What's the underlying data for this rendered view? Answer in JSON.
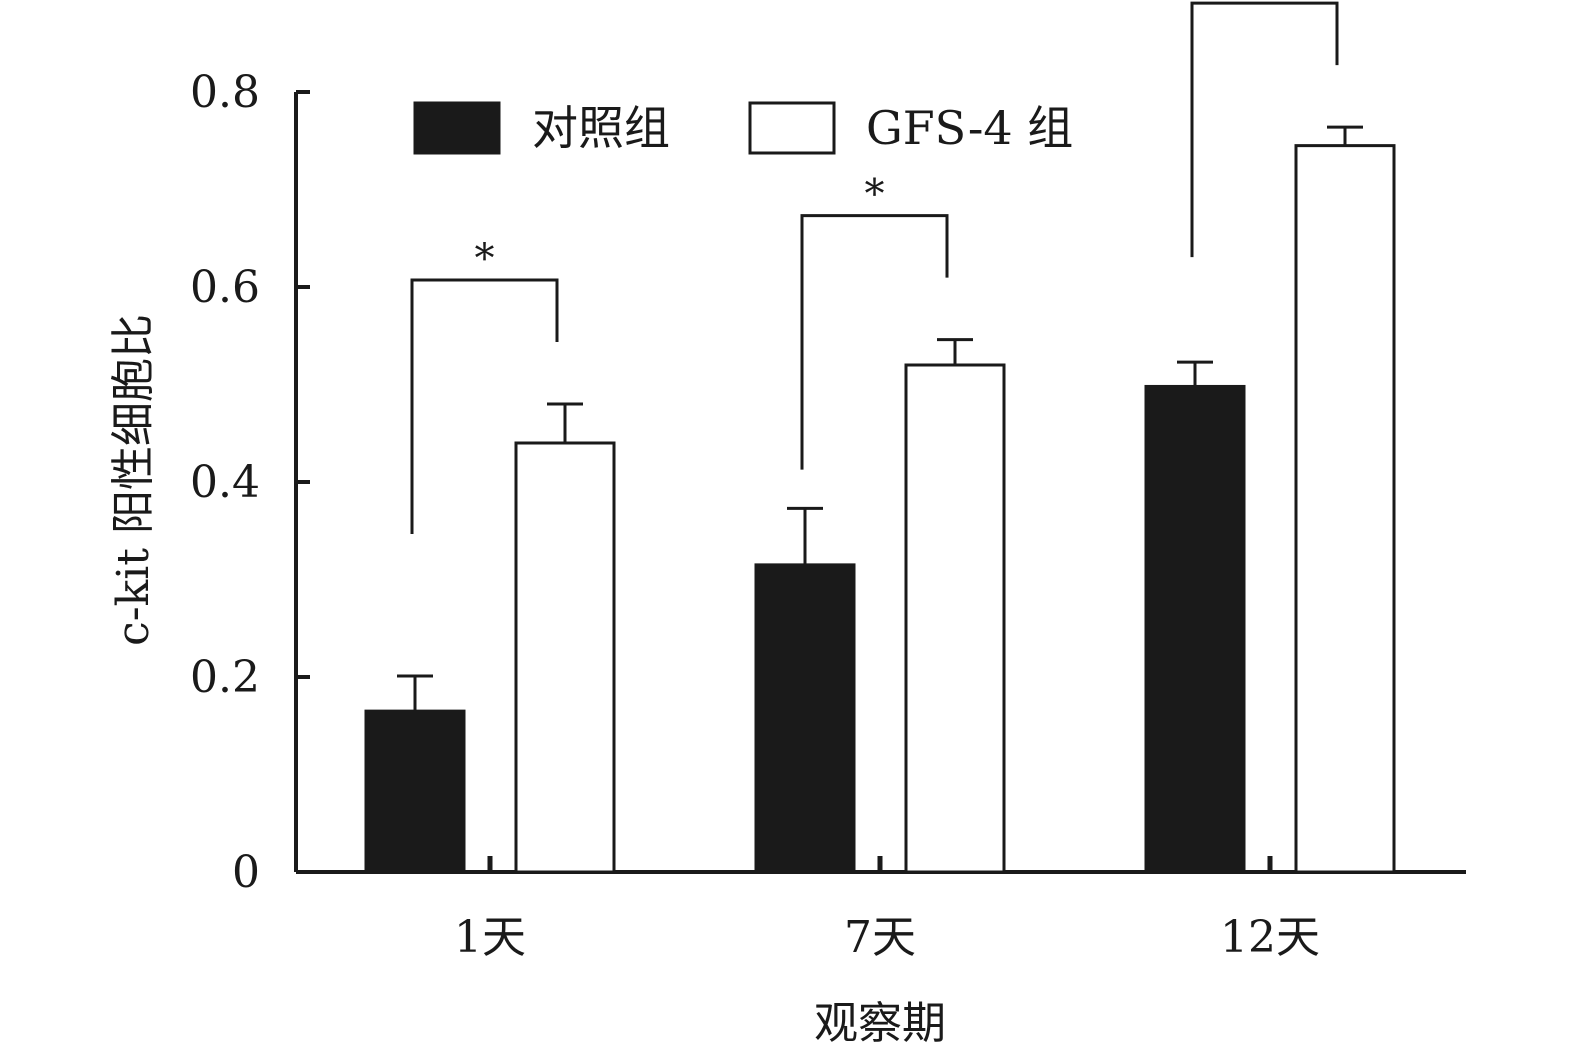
{
  "chart_data": {
    "type": "bar",
    "xlabel": "观察期",
    "ylabel": "c-kit 阳性细胞比",
    "categories": [
      "1天",
      "7天",
      "12天"
    ],
    "ylim": [
      0,
      0.8
    ],
    "yticks": [
      0,
      0.2,
      0.4,
      0.6,
      0.8
    ],
    "ytick_labels": [
      "0",
      "0.2",
      "0.4",
      "0.6",
      "0.8"
    ],
    "series": [
      {
        "name": "对照组",
        "values": [
          0.165,
          0.315,
          0.498
        ],
        "errors": [
          0.036,
          0.058,
          0.025
        ],
        "color": "#1a1a1a"
      },
      {
        "name": "GFS-4 组",
        "values": [
          0.44,
          0.52,
          0.745
        ],
        "errors": [
          0.04,
          0.026,
          0.019
        ],
        "color": "#ffffff"
      }
    ],
    "significance": [
      {
        "category": "1天",
        "label": "*"
      },
      {
        "category": "7天",
        "label": "*"
      },
      {
        "category": "12天",
        "label": "*"
      }
    ],
    "legend_position": "top"
  }
}
